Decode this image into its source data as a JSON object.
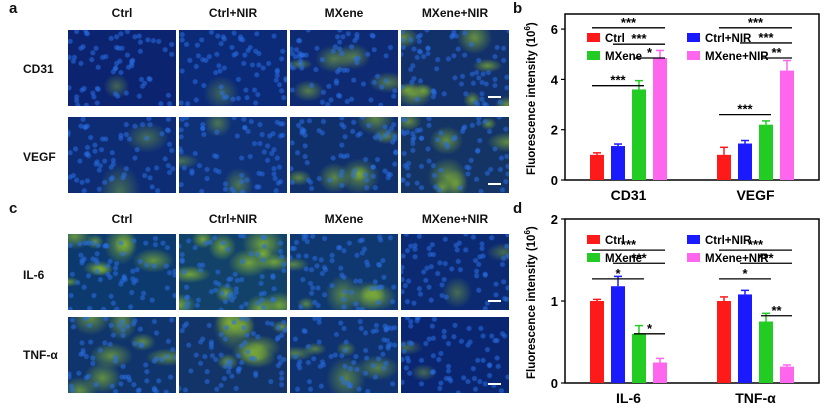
{
  "panels": {
    "a": {
      "letter": "a",
      "columns": [
        "Ctrl",
        "Ctrl+NIR",
        "MXene",
        "MXene+NIR"
      ],
      "rows": [
        "CD31",
        "VEGF"
      ],
      "tiles": [
        [
          {
            "base": "#0c2470",
            "green": 0.1
          },
          {
            "base": "#0b2a78",
            "green": 0.06
          },
          {
            "base": "#0e2a72",
            "green": 0.35
          },
          {
            "base": "#12306a",
            "green": 0.55
          }
        ],
        [
          {
            "base": "#0d2c74",
            "green": 0.12
          },
          {
            "base": "#0f3178",
            "green": 0.2
          },
          {
            "base": "#10306c",
            "green": 0.45
          },
          {
            "base": "#143466",
            "green": 0.5
          }
        ]
      ]
    },
    "c": {
      "letter": "c",
      "columns": [
        "Ctrl",
        "Ctrl+NIR",
        "MXene",
        "MXene+NIR"
      ],
      "rows": [
        "IL-6",
        "TNF-α"
      ],
      "tiles": [
        [
          {
            "base": "#0d3a6e",
            "green": 0.55
          },
          {
            "base": "#12426a",
            "green": 0.75
          },
          {
            "base": "#103870",
            "green": 0.4
          },
          {
            "base": "#0c2a72",
            "green": 0.15
          }
        ],
        [
          {
            "base": "#10356c",
            "green": 0.5
          },
          {
            "base": "#123468",
            "green": 0.55
          },
          {
            "base": "#0f3270",
            "green": 0.35
          },
          {
            "base": "#0b2670",
            "green": 0.12
          }
        ]
      ]
    }
  },
  "chart_data": [
    {
      "panel": "b",
      "type": "bar",
      "ylabel": "Fluorescence intensity (10",
      "ylabel_exp": "6",
      "ylabel_close": ")",
      "ylim": [
        0,
        6.6
      ],
      "yticks": [
        "0",
        "2",
        "4",
        "6"
      ],
      "ytick_values": [
        0,
        2,
        4,
        6
      ],
      "categories": [
        "CD31",
        "VEGF"
      ],
      "series": [
        {
          "name": "Ctrl",
          "color": "#ff1a1a",
          "values": [
            1.0,
            1.0
          ],
          "errors": [
            0.08,
            0.3
          ]
        },
        {
          "name": "Ctrl+NIR",
          "color": "#1a1aff",
          "values": [
            1.35,
            1.45
          ],
          "errors": [
            0.08,
            0.12
          ]
        },
        {
          "name": "MXene",
          "color": "#22cc22",
          "values": [
            3.6,
            2.2
          ],
          "errors": [
            0.35,
            0.15
          ]
        },
        {
          "name": "MXene+NIR",
          "color": "#ff66ee",
          "values": [
            4.85,
            4.35
          ],
          "errors": [
            0.3,
            0.4
          ]
        }
      ],
      "significance": [
        {
          "cat": 0,
          "from": 0,
          "to": 3,
          "y": 6.05,
          "label": "***"
        },
        {
          "cat": 0,
          "from": 1,
          "to": 3,
          "y": 5.4,
          "label": "***"
        },
        {
          "cat": 0,
          "from": 2,
          "to": 3,
          "y": 4.85,
          "label": "*"
        },
        {
          "cat": 0,
          "from": 0,
          "to": 2,
          "y": 3.75,
          "label": "***"
        },
        {
          "cat": 1,
          "from": 0,
          "to": 3,
          "y": 6.05,
          "label": "***"
        },
        {
          "cat": 1,
          "from": 1,
          "to": 3,
          "y": 5.45,
          "label": "***"
        },
        {
          "cat": 1,
          "from": 2,
          "to": 3,
          "y": 4.85,
          "label": "**"
        },
        {
          "cat": 1,
          "from": 0,
          "to": 2,
          "y": 2.6,
          "label": "***"
        }
      ]
    },
    {
      "panel": "d",
      "type": "bar",
      "ylabel": "Fluorescence intensity (10",
      "ylabel_exp": "6",
      "ylabel_close": ")",
      "ylim": [
        0,
        2.0
      ],
      "yticks": [
        "0",
        "1",
        "2"
      ],
      "ytick_values": [
        0,
        1,
        2
      ],
      "categories": [
        "IL-6",
        "TNF-α"
      ],
      "series": [
        {
          "name": "Ctrl",
          "color": "#ff1a1a",
          "values": [
            1.0,
            1.0
          ],
          "errors": [
            0.02,
            0.05
          ]
        },
        {
          "name": "Ctrl+NIR",
          "color": "#1a1aff",
          "values": [
            1.18,
            1.08
          ],
          "errors": [
            0.12,
            0.05
          ]
        },
        {
          "name": "MXene",
          "color": "#22cc22",
          "values": [
            0.6,
            0.75
          ],
          "errors": [
            0.1,
            0.1
          ]
        },
        {
          "name": "MXene+NIR",
          "color": "#ff66ee",
          "values": [
            0.25,
            0.2
          ],
          "errors": [
            0.05,
            0.02
          ]
        }
      ],
      "significance": [
        {
          "cat": 0,
          "from": 0,
          "to": 3,
          "y": 1.62,
          "label": "***"
        },
        {
          "cat": 0,
          "from": 1,
          "to": 3,
          "y": 1.46,
          "label": "***"
        },
        {
          "cat": 0,
          "from": 0,
          "to": 2,
          "y": 1.27,
          "label": "*"
        },
        {
          "cat": 0,
          "from": 2,
          "to": 3,
          "y": 0.6,
          "label": "*"
        },
        {
          "cat": 1,
          "from": 0,
          "to": 3,
          "y": 1.62,
          "label": "***"
        },
        {
          "cat": 1,
          "from": 1,
          "to": 3,
          "y": 1.46,
          "label": "***"
        },
        {
          "cat": 1,
          "from": 0,
          "to": 2,
          "y": 1.27,
          "label": "*"
        },
        {
          "cat": 1,
          "from": 2,
          "to": 3,
          "y": 0.82,
          "label": "**"
        }
      ]
    }
  ]
}
